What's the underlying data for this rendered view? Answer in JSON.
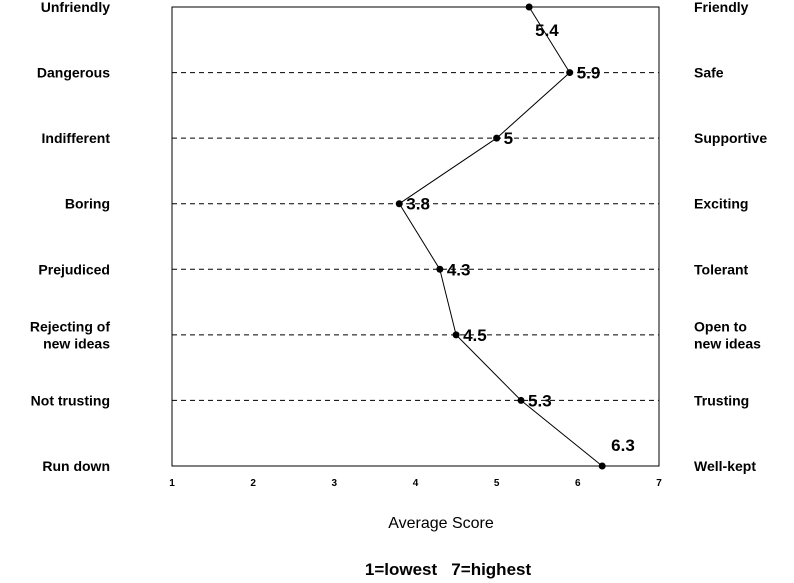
{
  "chart_data": {
    "type": "line",
    "xlabel": "Average Score",
    "note": "1=lowest   7=highest",
    "xlim": [
      1,
      7
    ],
    "xticks": [
      "1",
      "2",
      "3",
      "4",
      "5",
      "6",
      "7"
    ],
    "grid": "horizontal dashed",
    "items": [
      {
        "left": [
          "Unfriendly"
        ],
        "right": [
          "Friendly"
        ],
        "value": 5.4,
        "label": "5.4"
      },
      {
        "left": [
          "Dangerous"
        ],
        "right": [
          "Safe"
        ],
        "value": 5.9,
        "label": "5.9"
      },
      {
        "left": [
          "Indifferent"
        ],
        "right": [
          "Supportive"
        ],
        "value": 5.0,
        "label": "5"
      },
      {
        "left": [
          "Boring"
        ],
        "right": [
          "Exciting"
        ],
        "value": 3.8,
        "label": "3.8"
      },
      {
        "left": [
          "Prejudiced"
        ],
        "right": [
          "Tolerant"
        ],
        "value": 4.3,
        "label": "4.3"
      },
      {
        "left": [
          "Rejecting of",
          "new ideas"
        ],
        "right": [
          "Open to",
          "new ideas"
        ],
        "value": 4.5,
        "label": "4.5"
      },
      {
        "left": [
          "Not trusting"
        ],
        "right": [
          "Trusting"
        ],
        "value": 5.3,
        "label": "5.3"
      },
      {
        "left": [
          "Run down"
        ],
        "right": [
          "Well-kept"
        ],
        "value": 6.3,
        "label": "6.3"
      }
    ],
    "colors": {
      "line": "#000000",
      "marker": "#000000",
      "grid": "#000000"
    }
  }
}
